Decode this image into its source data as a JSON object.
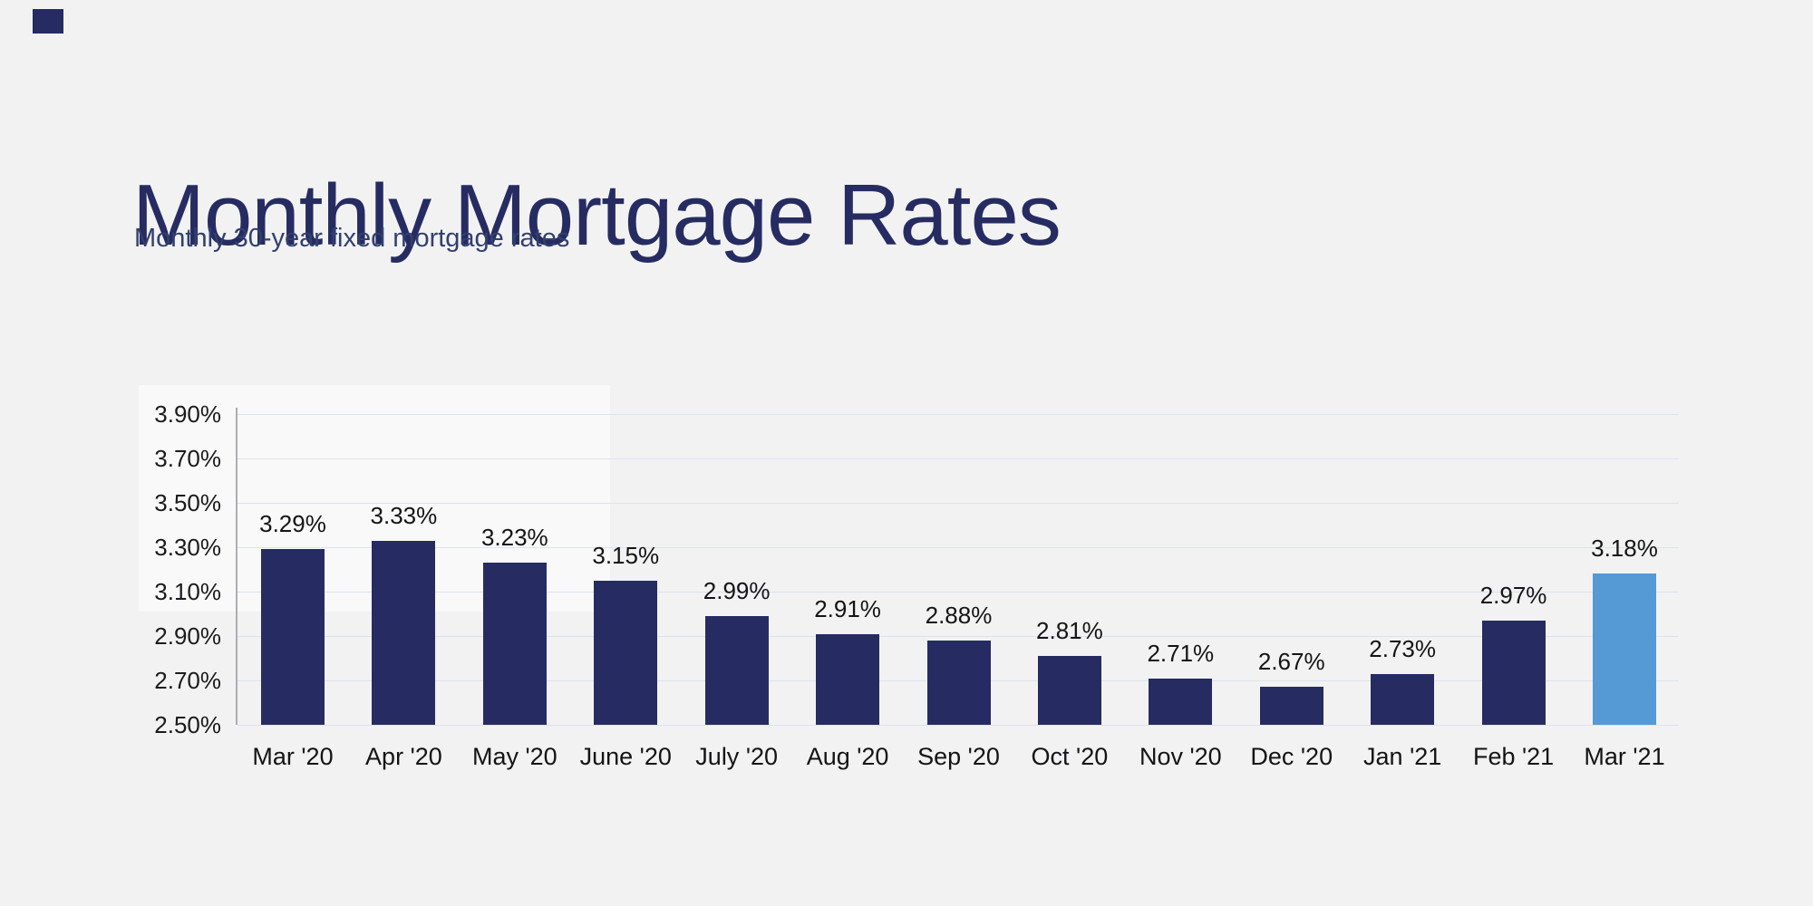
{
  "page": {
    "background_color": "#f2f2f3"
  },
  "header": {
    "title": "Monthly Mortgage Rates",
    "subtitle": "Monthly 30-year fixed mortgage rates",
    "title_color": "#262c62"
  },
  "chart_data": {
    "type": "bar",
    "title": "Monthly Mortgage Rates",
    "subtitle": "Monthly 30-year fixed mortgage rates",
    "categories": [
      "Mar '20",
      "Apr '20",
      "May '20",
      "June '20",
      "July '20",
      "Aug '20",
      "Sep '20",
      "Oct '20",
      "Nov '20",
      "Dec '20",
      "Jan '21",
      "Feb '21",
      "Mar '21"
    ],
    "values": [
      3.29,
      3.33,
      3.23,
      3.15,
      2.99,
      2.91,
      2.88,
      2.81,
      2.71,
      2.67,
      2.73,
      2.97,
      3.18
    ],
    "value_labels": [
      "3.29%",
      "3.33%",
      "3.23%",
      "3.15%",
      "2.99%",
      "2.91%",
      "2.88%",
      "2.81%",
      "2.71%",
      "2.67%",
      "2.73%",
      "2.97%",
      "3.18%"
    ],
    "ylim": [
      2.5,
      3.9
    ],
    "yticks": [
      2.5,
      2.7,
      2.9,
      3.1,
      3.3,
      3.5,
      3.7,
      3.9
    ],
    "ytick_labels": [
      "2.50%",
      "2.70%",
      "2.90%",
      "3.10%",
      "3.30%",
      "3.50%",
      "3.70%",
      "3.90%"
    ],
    "grid": true,
    "legend": "none",
    "xlabel": "",
    "ylabel": "",
    "bar_color": "#262c62",
    "highlight_index": 12,
    "highlight_color": "#5599d5"
  }
}
